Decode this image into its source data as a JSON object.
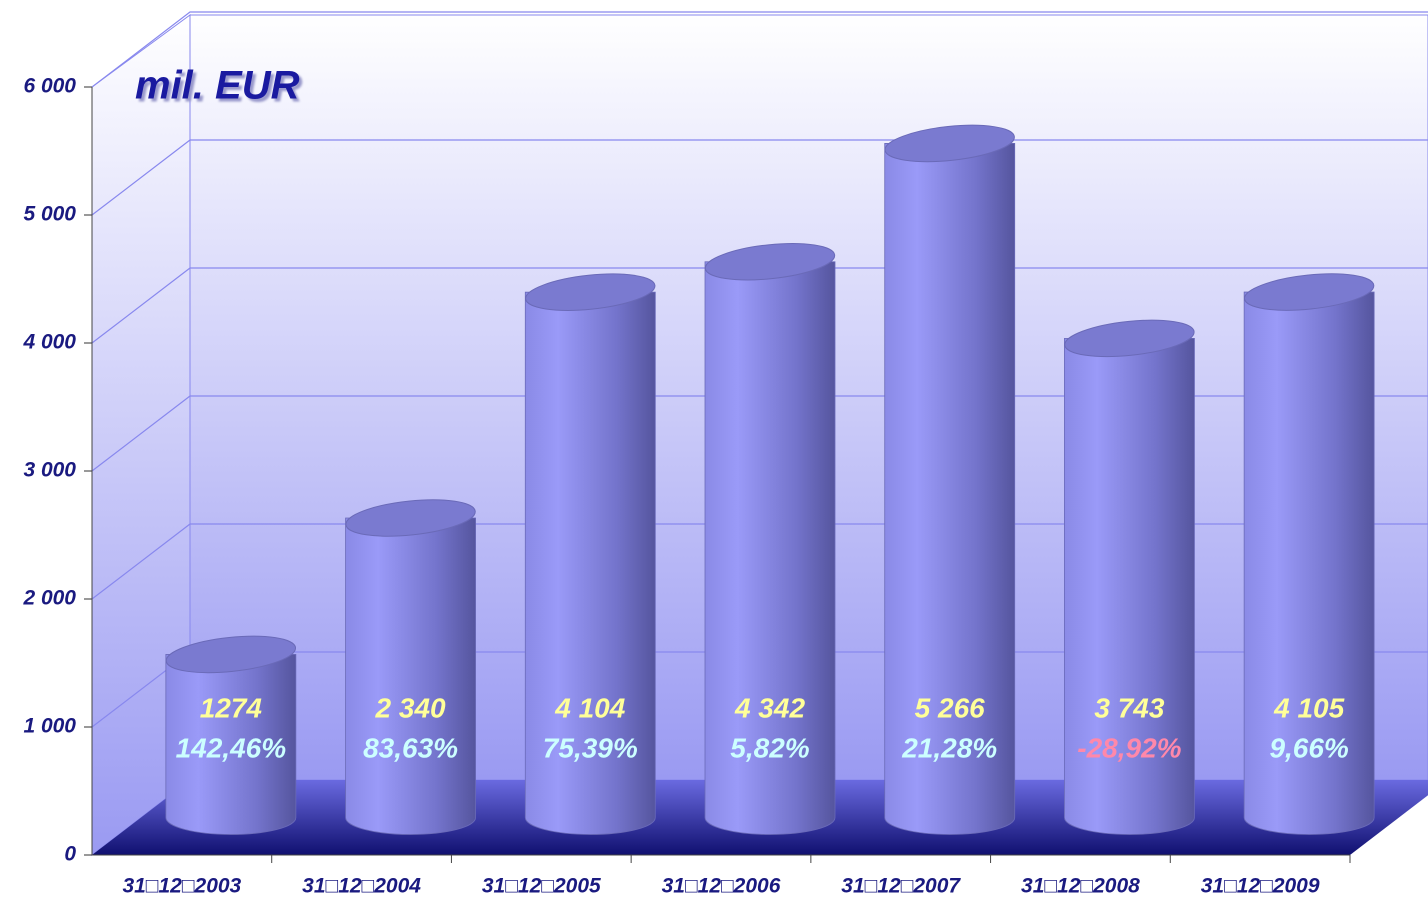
{
  "chart_data": {
    "type": "bar3d",
    "title": "mil. EUR",
    "categories": [
      "31□12□2003",
      "31□12□2004",
      "31□12□2005",
      "31□12□2006",
      "31□12□2007",
      "31□12□2008",
      "31□12□2009"
    ],
    "values": [
      1274,
      2340,
      4104,
      4342,
      5266,
      3743,
      4105
    ],
    "value_labels": [
      "1274",
      "2 340",
      "4 104",
      "4 342",
      "5 266",
      "3 743",
      "4 105"
    ],
    "change_labels": [
      "142,46%",
      "83,63%",
      "75,39%",
      "5,82%",
      "21,28%",
      "-28,92%",
      "9,66%"
    ],
    "change_colors": [
      "#ccffff",
      "#ccffff",
      "#ccffff",
      "#ccffff",
      "#ccffff",
      "#ff88aa",
      "#ccffff"
    ],
    "color": "#8c8cf0",
    "ylim": [
      0,
      6000
    ],
    "yticks": [
      0,
      {
        "value": 1000,
        "label": "1 000"
      },
      {
        "value": 2000,
        "label": "2 000"
      },
      {
        "value": 3000,
        "label": "3 000"
      },
      {
        "value": 4000,
        "label": "4 000"
      },
      {
        "value": 5000,
        "label": "5 000"
      },
      {
        "value": 6000,
        "label": "6 000"
      }
    ],
    "grid": true
  }
}
